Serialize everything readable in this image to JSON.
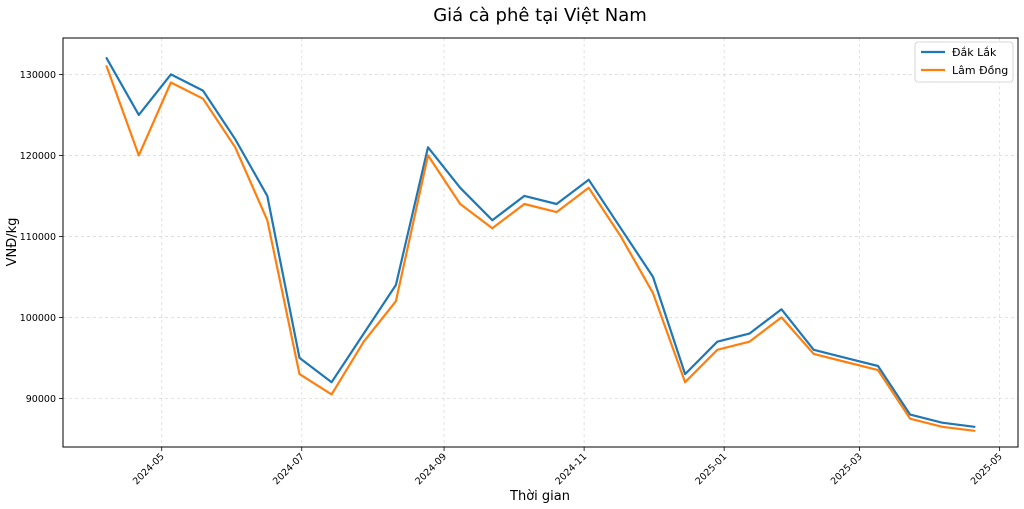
{
  "chart_data": {
    "type": "line",
    "title": "Giá cà phê tại Việt Nam",
    "xlabel": "Thời gian",
    "ylabel": "VNĐ/kg",
    "x": [
      "2024-04-07",
      "2024-04-21",
      "2024-05-05",
      "2024-05-19",
      "2024-06-02",
      "2024-06-16",
      "2024-06-30",
      "2024-07-14",
      "2024-07-28",
      "2024-08-11",
      "2024-08-25",
      "2024-09-08",
      "2024-09-22",
      "2024-10-06",
      "2024-10-20",
      "2024-11-03",
      "2024-11-17",
      "2024-12-01",
      "2024-12-15",
      "2024-12-29",
      "2025-01-12",
      "2025-01-26",
      "2025-02-09",
      "2025-02-23",
      "2025-03-09",
      "2025-03-23",
      "2025-04-06",
      "2025-04-20"
    ],
    "series": [
      {
        "name": "Đắk Lắk",
        "color": "#1f77b4",
        "values": [
          132000,
          125000,
          130000,
          128000,
          122000,
          115000,
          95000,
          92000,
          98000,
          104000,
          121000,
          116000,
          112000,
          115000,
          114000,
          117000,
          111000,
          105000,
          93000,
          97000,
          98000,
          101000,
          96000,
          95000,
          94000,
          88000,
          87000,
          86500
        ]
      },
      {
        "name": "Lâm Đồng",
        "color": "#ff7f0e",
        "values": [
          131000,
          120000,
          129000,
          127000,
          121000,
          112000,
          93000,
          90500,
          97000,
          102000,
          120000,
          114000,
          111000,
          114000,
          113000,
          116000,
          110000,
          103000,
          92000,
          96000,
          97000,
          100000,
          95500,
          94500,
          93500,
          87500,
          86500,
          86000
        ]
      }
    ],
    "xlim": [
      "2024-03-19",
      "2025-05-09"
    ],
    "ylim": [
      84000,
      134500
    ],
    "xticks": [
      "2024-05",
      "2024-07",
      "2024-09",
      "2024-11",
      "2025-01",
      "2025-03",
      "2025-05"
    ],
    "yticks": [
      90000,
      100000,
      110000,
      120000,
      130000
    ],
    "grid": true,
    "legend": "top-right"
  }
}
